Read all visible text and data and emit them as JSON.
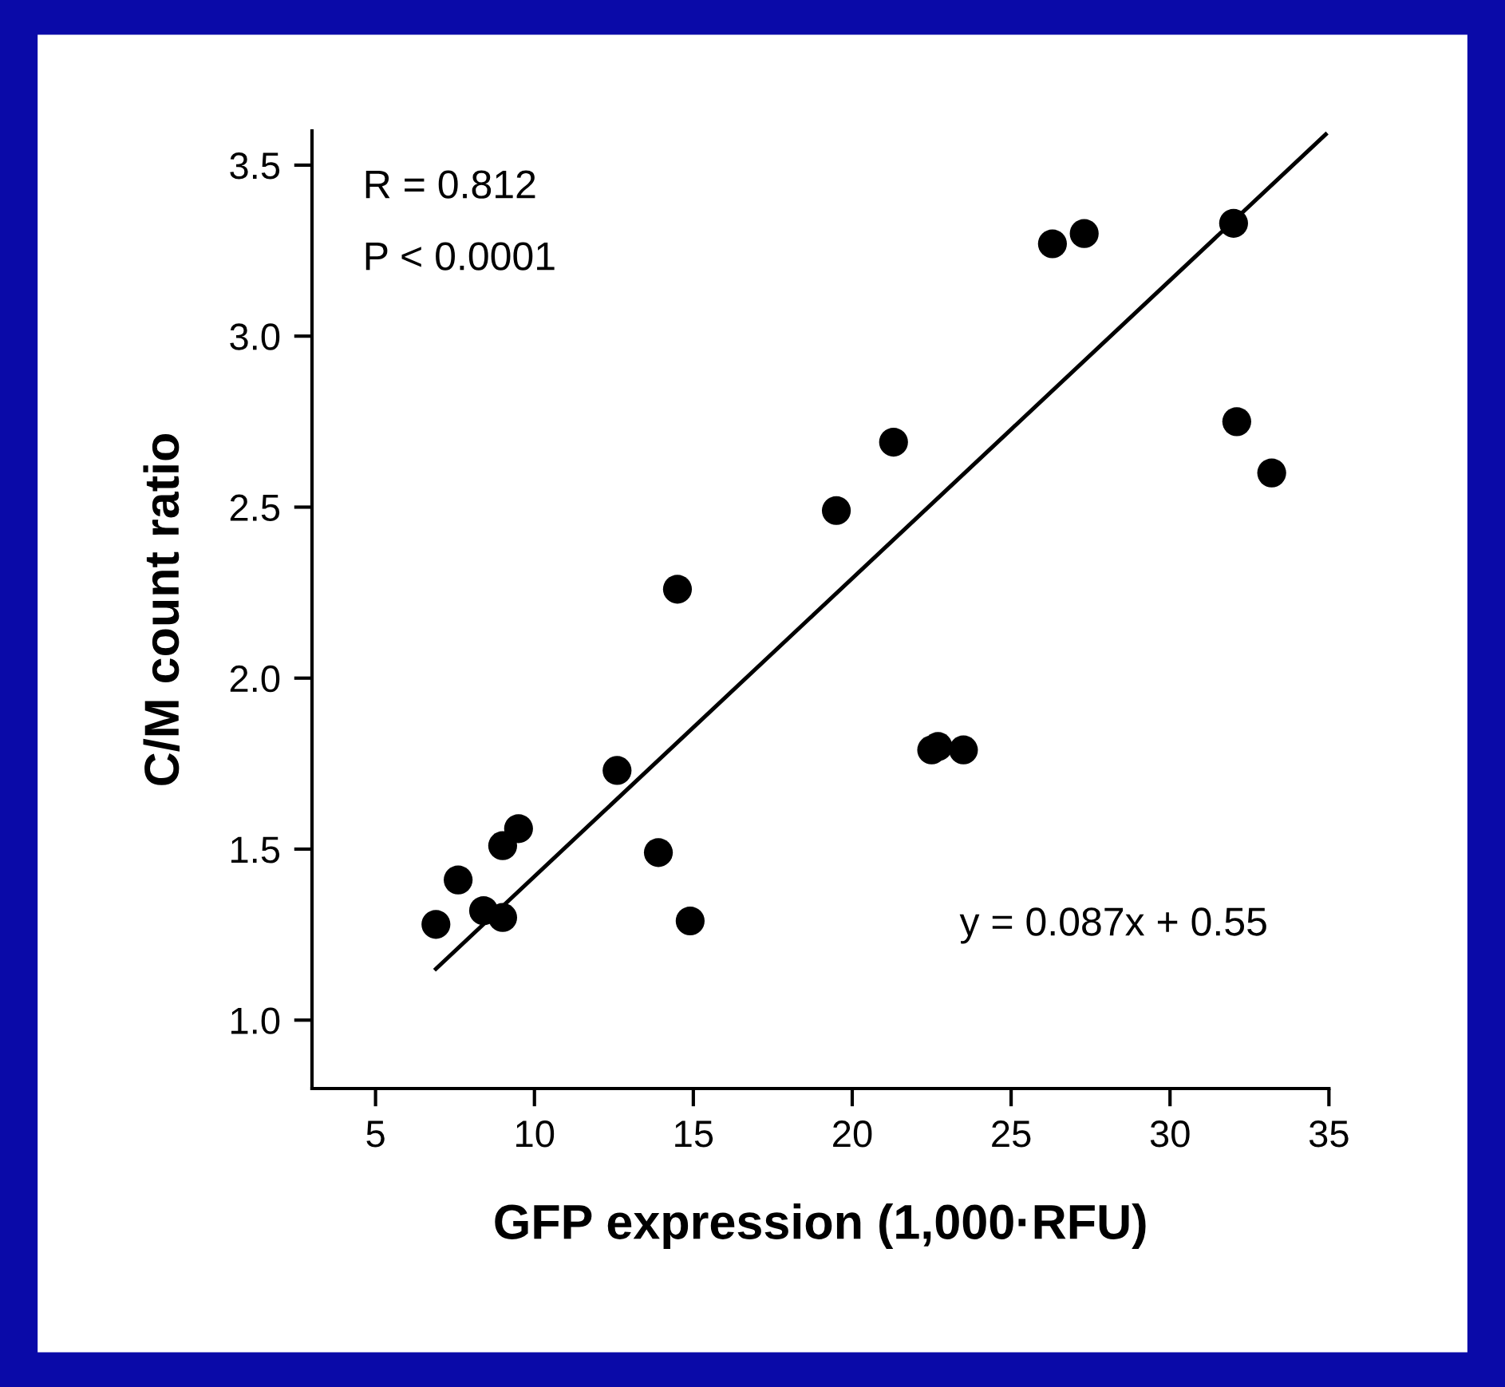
{
  "chart_data": {
    "type": "scatter",
    "xlabel": "GFP expression (1,000·RFU)",
    "ylabel": "C/M count ratio",
    "xlim": [
      3,
      35
    ],
    "xticks": [
      5,
      10,
      15,
      20,
      25,
      30,
      35
    ],
    "ylim": [
      0.8,
      3.6
    ],
    "yticks": [
      {
        "value": 1.0,
        "label": "1.0"
      },
      {
        "value": 1.5,
        "label": "1.5"
      },
      {
        "value": 2.0,
        "label": "2.0"
      },
      {
        "value": 2.5,
        "label": "2.5"
      },
      {
        "value": 3.0,
        "label": "3.0"
      },
      {
        "value": 3.5,
        "label": "3.5"
      }
    ],
    "grid": false,
    "legend": false,
    "marker": "circle",
    "series": [
      {
        "color": "#000000",
        "x": [
          6.9,
          7.6,
          8.4,
          9.0,
          9.0,
          9.5,
          12.6,
          13.9,
          14.5,
          14.9,
          19.5,
          21.3,
          22.5,
          22.7,
          23.5,
          26.3,
          27.3,
          32.0,
          32.1,
          33.2
        ],
        "values": [
          1.28,
          1.41,
          1.32,
          1.51,
          1.3,
          1.56,
          1.73,
          1.49,
          2.26,
          1.29,
          2.49,
          2.69,
          1.79,
          1.8,
          1.79,
          3.27,
          3.3,
          3.33,
          2.75,
          2.6
        ]
      },
      {
        "type": "line",
        "color": "#000000",
        "marker": "none",
        "line_style": "solid",
        "x": [
          6.9,
          34.9
        ],
        "values": [
          1.15,
          3.59
        ]
      }
    ],
    "annotations": [
      "R = 0.812",
      "P < 0.0001",
      "y = 0.087x + 0.55"
    ]
  }
}
